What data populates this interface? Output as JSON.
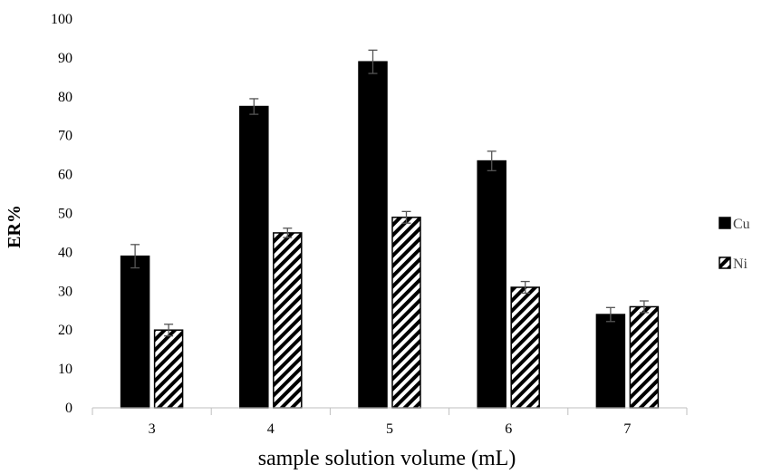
{
  "chart_data": {
    "type": "bar",
    "title": "",
    "xlabel": "sample solution volume (mL)",
    "ylabel": "ER%",
    "categories": [
      "3",
      "4",
      "5",
      "6",
      "7"
    ],
    "ylim": [
      0,
      100
    ],
    "yticks": [
      "0",
      "10",
      "20",
      "30",
      "40",
      "50",
      "60",
      "70",
      "80",
      "90",
      "100"
    ],
    "grid": false,
    "legend_position": "right",
    "series": [
      {
        "name": "Cu",
        "values": [
          39,
          77.5,
          89,
          63.5,
          24
        ],
        "errors": [
          3,
          2,
          3,
          2.5,
          1.8
        ],
        "fill": "#000000",
        "pattern": "solid"
      },
      {
        "name": "Ni",
        "values": [
          20,
          45,
          49,
          31,
          26
        ],
        "errors": [
          1.5,
          1.2,
          1.5,
          1.5,
          1.5
        ],
        "fill": "#000000",
        "pattern": "diagonal-stripes"
      }
    ]
  }
}
